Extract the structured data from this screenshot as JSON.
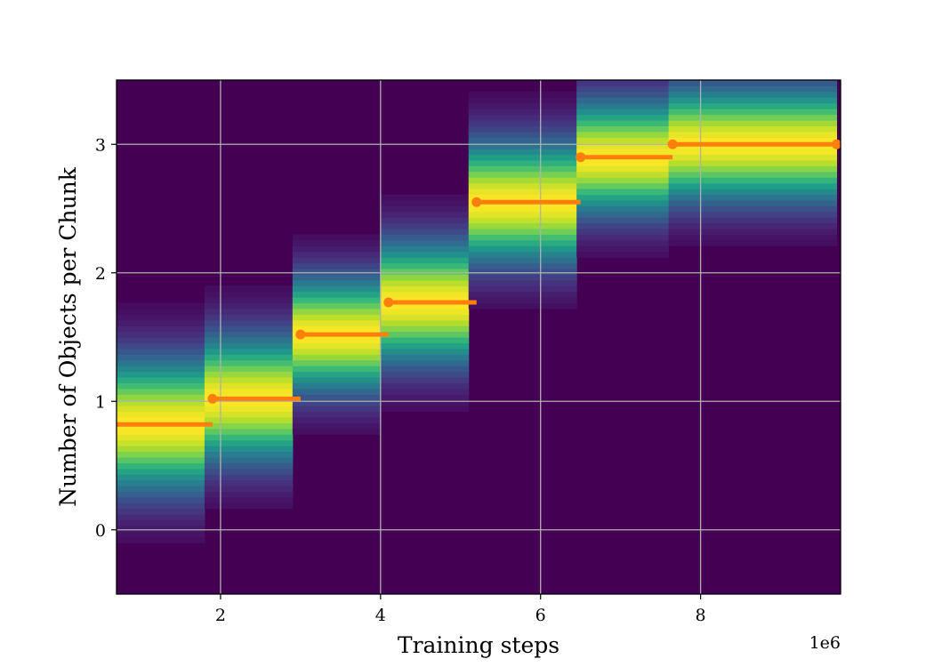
{
  "chart_data": {
    "type": "heatmap",
    "title": "",
    "xlabel": "Training steps",
    "ylabel": "Number of Objects per Chunk",
    "x_offset_text": "1e6",
    "xlim": [
      0.7,
      9.75
    ],
    "ylim": [
      -0.5,
      3.5
    ],
    "x_scale_factor": 1000000,
    "x_ticks": [
      2,
      4,
      6,
      8
    ],
    "x_tick_labels": [
      "2",
      "4",
      "6",
      "8"
    ],
    "y_ticks": [
      0,
      1,
      2,
      3
    ],
    "y_tick_labels": [
      "0",
      "1",
      "2",
      "3"
    ],
    "grid": true,
    "colormap": "viridis",
    "heatmap_columns": [
      {
        "x_start": 0.7,
        "x_end": 1.8,
        "peak": 0.82,
        "spread": 0.35
      },
      {
        "x_start": 1.8,
        "x_end": 2.9,
        "peak": 1.02,
        "spread": 0.33
      },
      {
        "x_start": 2.9,
        "x_end": 4.0,
        "peak": 1.52,
        "spread": 0.3
      },
      {
        "x_start": 4.0,
        "x_end": 5.1,
        "peak": 1.77,
        "spread": 0.32
      },
      {
        "x_start": 5.1,
        "x_end": 6.45,
        "peak": 2.55,
        "spread": 0.32
      },
      {
        "x_start": 6.45,
        "x_end": 7.6,
        "peak": 2.9,
        "spread": 0.3
      },
      {
        "x_start": 7.6,
        "x_end": 9.7,
        "peak": 3.0,
        "spread": 0.3
      }
    ],
    "series": [
      {
        "type": "step",
        "color": "#ff7f0e",
        "points": [
          {
            "x": 0.7,
            "y": 0.82,
            "x_end": 1.9
          },
          {
            "x": 1.9,
            "y": 1.02,
            "x_end": 3.0
          },
          {
            "x": 3.0,
            "y": 1.52,
            "x_end": 4.1
          },
          {
            "x": 4.1,
            "y": 1.77,
            "x_end": 5.2
          },
          {
            "x": 5.2,
            "y": 2.55,
            "x_end": 6.5
          },
          {
            "x": 6.5,
            "y": 2.9,
            "x_end": 7.65
          },
          {
            "x": 7.65,
            "y": 3.0,
            "x_end": 9.7
          }
        ]
      }
    ]
  }
}
